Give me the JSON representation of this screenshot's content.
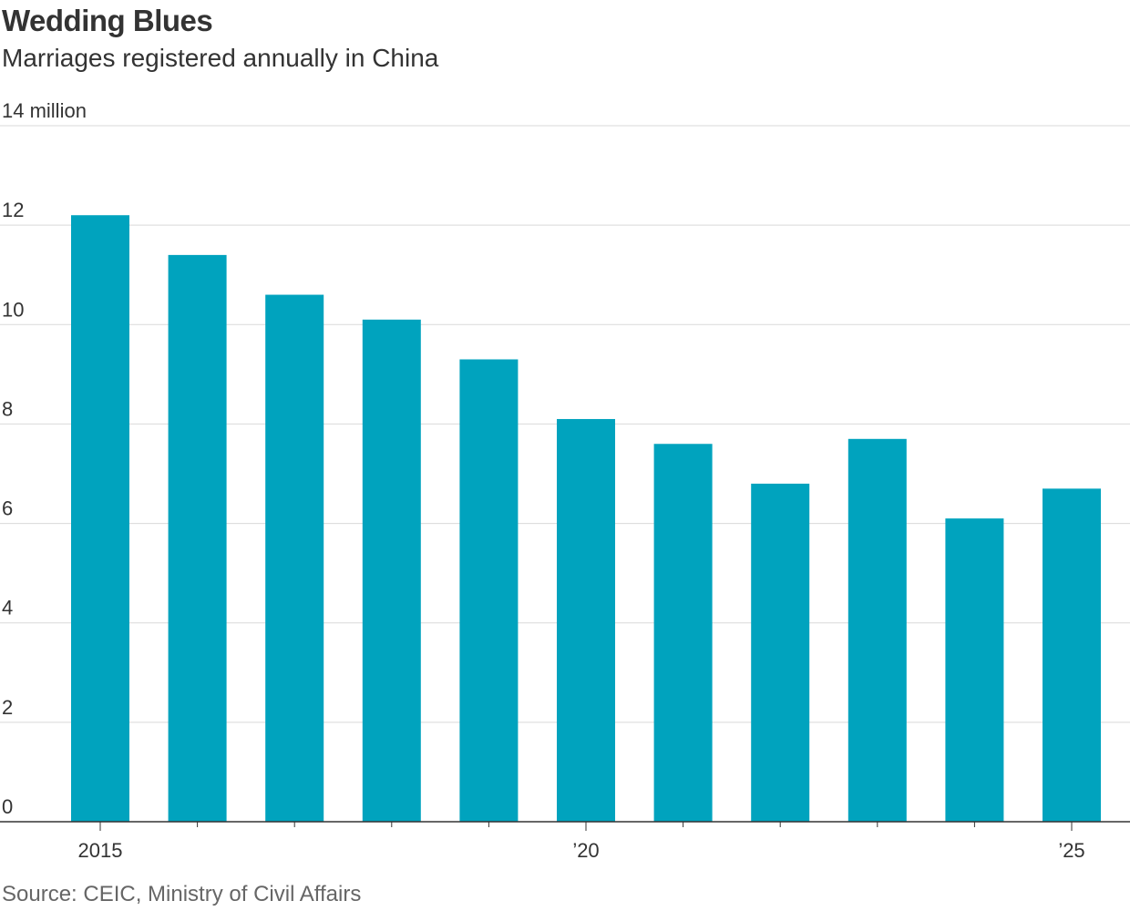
{
  "header": {
    "title": "Wedding Blues",
    "subtitle": "Marriages registered annually in China"
  },
  "footer": {
    "source": "Source: CEIC, Ministry of Civil Affairs"
  },
  "colors": {
    "bar": "#00a3be",
    "grid": "#d9d9d9",
    "axis": "#333333"
  },
  "chart_data": {
    "type": "bar",
    "title": "Wedding Blues",
    "subtitle": "Marriages registered annually in China",
    "unit": "million",
    "categories": [
      "2015",
      "2016",
      "2017",
      "2018",
      "2019",
      "2020",
      "2021",
      "2022",
      "2023",
      "2024",
      "2025"
    ],
    "values": [
      12.2,
      11.4,
      10.6,
      10.1,
      9.3,
      8.1,
      7.6,
      6.8,
      7.7,
      6.1,
      6.7
    ],
    "ylim": [
      0,
      14
    ],
    "yticks": [
      0,
      2,
      4,
      6,
      8,
      10,
      12,
      14
    ],
    "ytick_labels": [
      "0",
      "2",
      "4",
      "6",
      "8",
      "10",
      "12",
      "14 million"
    ],
    "xtick_labels": [
      {
        "index": 0,
        "label": "2015"
      },
      {
        "index": 5,
        "label": "’20"
      },
      {
        "index": 10,
        "label": "’25"
      }
    ],
    "grid": true,
    "legend": "none"
  }
}
